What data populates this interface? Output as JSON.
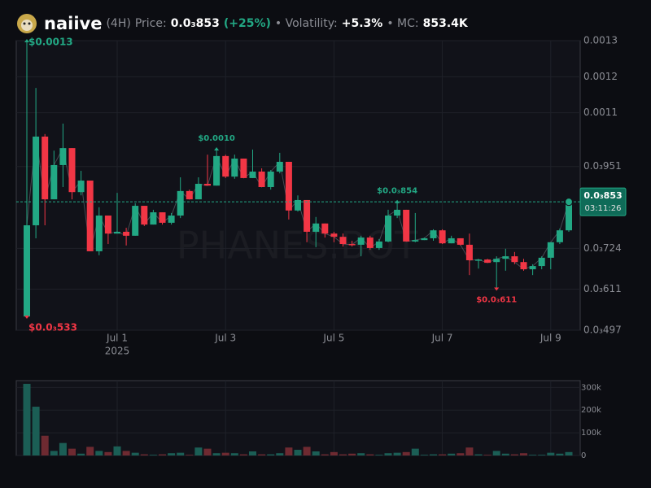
{
  "header": {
    "name": "naiive",
    "interval": "(4H)",
    "price_label": "Price:",
    "price": "0.0₃853",
    "change": "(+25%)",
    "volatility_label": "• Volatility:",
    "volatility": "+5.3%",
    "mc_label": "• MC:",
    "mc": "853.4K"
  },
  "chart_data": [
    {
      "type": "candlestick",
      "watermark": "PHANES.BOT",
      "categories": [
        null,
        null,
        null,
        null,
        null,
        null,
        null,
        null,
        null,
        null,
        "Jul 1",
        null,
        null,
        null,
        null,
        null,
        null,
        null,
        null,
        null,
        null,
        null,
        "Jul 3",
        null,
        null,
        null,
        null,
        null,
        null,
        null,
        null,
        null,
        null,
        null,
        "Jul 5",
        null,
        null,
        null,
        null,
        null,
        null,
        null,
        null,
        null,
        null,
        null,
        "Jul 7",
        null,
        null,
        null,
        null,
        null,
        null,
        null,
        null,
        null,
        null,
        null,
        "Jul 9",
        null,
        null
      ],
      "year": "2025",
      "open": [
        0.000535,
        0.000788,
        0.001034,
        0.00086,
        0.000955,
        0.001002,
        0.00088,
        0.000912,
        0.000716,
        0.000815,
        0.000765,
        0.00077,
        0.000759,
        0.000842,
        0.00079,
        0.000824,
        0.000795,
        0.000815,
        0.000883,
        0.00086,
        0.000903,
        0.000898,
        0.00098,
        0.000923,
        0.000973,
        0.000919,
        0.000937,
        0.000894,
        0.000937,
        0.000964,
        0.000829,
        0.000858,
        0.00077,
        0.000793,
        0.000765,
        0.000756,
        0.000736,
        0.000734,
        0.000754,
        0.000725,
        0.000743,
        0.000815,
        0.000831,
        0.000743,
        0.000747,
        0.000752,
        0.000774,
        0.000738,
        0.000752,
        0.000734,
        0.000691,
        0.000693,
        0.000686,
        0.000695,
        0.000702,
        0.000686,
        0.000666,
        0.000675,
        0.000698,
        0.000741,
        0.000774
      ],
      "high": [
        0.0013,
        0.001169,
        0.001041,
        0.000995,
        0.00107,
        0.001002,
        0.000939,
        0.000912,
        0.000838,
        0.000815,
        0.000878,
        0.000781,
        0.000849,
        0.000842,
        0.000831,
        0.000824,
        0.000822,
        0.000921,
        0.000887,
        0.000921,
        0.000984,
        0.001,
        0.000984,
        0.000984,
        0.000973,
        0.000998,
        0.000946,
        0.000941,
        0.000989,
        0.000964,
        0.000871,
        0.000858,
        0.000811,
        0.000793,
        0.00077,
        0.000765,
        0.000745,
        0.000759,
        0.000759,
        0.00075,
        0.000831,
        0.000854,
        0.000831,
        0.000822,
        0.000754,
        0.000777,
        0.000777,
        0.000759,
        0.000752,
        0.000765,
        0.000695,
        0.000695,
        0.000702,
        0.000723,
        0.000714,
        0.000695,
        0.00068,
        0.000702,
        0.000741,
        0.000779,
        0.000853
      ],
      "low": [
        0.000533,
        0.000752,
        0.000788,
        0.00086,
        0.000894,
        0.00086,
        0.000871,
        0.000716,
        0.000705,
        0.000736,
        0.000765,
        0.000732,
        0.000759,
        0.000786,
        0.00079,
        0.00079,
        0.00079,
        0.000808,
        0.00086,
        0.00086,
        0.000898,
        0.000898,
        0.000919,
        0.000917,
        0.000919,
        0.000919,
        0.000894,
        0.000887,
        0.000932,
        0.000804,
        0.000826,
        0.000741,
        0.000727,
        0.000754,
        0.000741,
        0.000729,
        0.000729,
        0.000702,
        0.00072,
        0.00072,
        0.000741,
        0.000808,
        0.000743,
        0.000741,
        0.000747,
        0.000745,
        0.000736,
        0.000738,
        0.000732,
        0.00065,
        0.000668,
        0.000684,
        0.000611,
        0.000662,
        0.00068,
        0.000662,
        0.00065,
        0.000666,
        0.000666,
        0.000736,
        0.00077
      ],
      "close": [
        0.000788,
        0.001034,
        0.00086,
        0.000955,
        0.001002,
        0.00088,
        0.000912,
        0.000716,
        0.000815,
        0.000765,
        0.00077,
        0.000759,
        0.000842,
        0.00079,
        0.000824,
        0.000795,
        0.000815,
        0.000883,
        0.00086,
        0.000903,
        0.000898,
        0.00098,
        0.000923,
        0.000973,
        0.000919,
        0.000937,
        0.000894,
        0.000937,
        0.000964,
        0.000829,
        0.000858,
        0.00077,
        0.000793,
        0.000765,
        0.000756,
        0.000736,
        0.000734,
        0.000754,
        0.000725,
        0.000743,
        0.000815,
        0.000831,
        0.000743,
        0.000747,
        0.000752,
        0.000774,
        0.000738,
        0.000752,
        0.000734,
        0.000691,
        0.000693,
        0.000684,
        0.000695,
        0.000702,
        0.000686,
        0.000666,
        0.000675,
        0.000698,
        0.000741,
        0.000774,
        0.000853
      ],
      "up_color": "#22a884",
      "down_color": "#f23645",
      "ylim": [
        0.000497,
        0.0013
      ],
      "yticks": [
        0.0013,
        0.0012,
        0.0011,
        {
          "value": 0.000951,
          "label": "0.0₃951"
        },
        {
          "value": 0.000724,
          "label": "0.0₃724"
        },
        {
          "value": 0.000611,
          "label": "0.0₃611"
        },
        {
          "value": 0.000497,
          "label": "0.0₃497"
        }
      ],
      "grid": true,
      "annotations": [
        {
          "label": "$0.0013",
          "value": 0.0013,
          "kind": "high"
        },
        {
          "label": "$0.0₃533",
          "value": 0.000533,
          "kind": "low"
        },
        {
          "label": "$0.0010",
          "value": 0.001,
          "kind": "high"
        },
        {
          "label": "$0.0₃854",
          "value": 0.000854,
          "kind": "high"
        },
        {
          "label": "$0.0₃611",
          "value": 0.000611,
          "kind": "low"
        }
      ],
      "last_price_label": "0.0₃853",
      "countdown": "03:11:26"
    },
    {
      "type": "bar",
      "values": [
        316000,
        215000,
        87000,
        20000,
        55000,
        30000,
        8000,
        38000,
        20000,
        15000,
        40000,
        20000,
        12000,
        5000,
        3000,
        5000,
        10000,
        12000,
        3000,
        35000,
        30000,
        10000,
        12000,
        10000,
        5000,
        18000,
        5000,
        5000,
        10000,
        35000,
        25000,
        38000,
        18000,
        5000,
        15000,
        5000,
        8000,
        10000,
        5000,
        3000,
        10000,
        12000,
        15000,
        30000,
        3000,
        5000,
        5000,
        8000,
        10000,
        35000,
        5000,
        3000,
        20000,
        8000,
        5000,
        10000,
        3000,
        3000,
        12000,
        8000,
        15000
      ],
      "up_color": "#1b5e55",
      "down_color": "#6e2a31",
      "ylim": [
        0,
        330000
      ],
      "yticks": [
        0,
        {
          "value": 100000,
          "label": "100k"
        },
        {
          "value": 200000,
          "label": "200k"
        },
        {
          "value": 300000,
          "label": "300k"
        }
      ],
      "grid": true
    }
  ]
}
